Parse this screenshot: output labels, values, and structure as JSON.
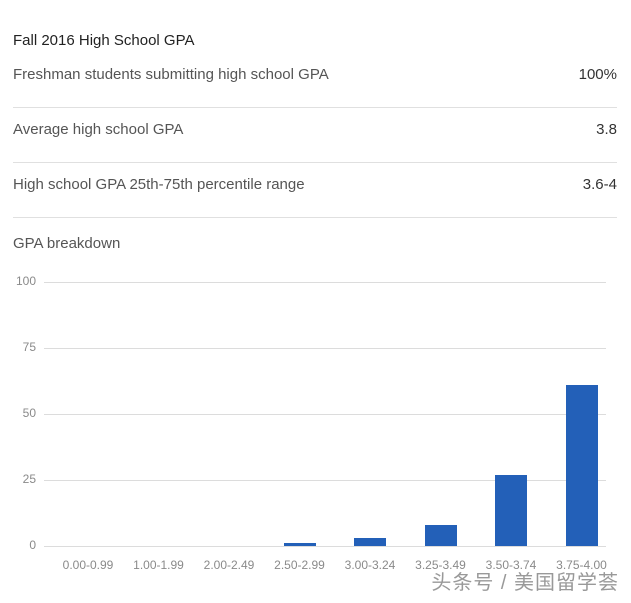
{
  "header": {
    "title": "Fall 2016 High School GPA"
  },
  "stats": [
    {
      "label": "Freshman students submitting high school GPA",
      "value": "100%"
    },
    {
      "label": "Average high school GPA",
      "value": "3.8"
    },
    {
      "label": "High school GPA 25th-75th percentile range",
      "value": "3.6-4"
    }
  ],
  "breakdown_label": "GPA breakdown",
  "watermark": "头条号 / 美国留学荟",
  "colors": {
    "bar": "#2360b8",
    "grid": "#dcdcdc"
  },
  "chart_data": {
    "type": "bar",
    "title": "GPA breakdown",
    "xlabel": "",
    "ylabel": "",
    "categories": [
      "0.00-0.99",
      "1.00-1.99",
      "2.00-2.49",
      "2.50-2.99",
      "3.00-3.24",
      "3.25-3.49",
      "3.50-3.74",
      "3.75-4.00"
    ],
    "values": [
      0,
      0,
      0,
      1,
      3,
      8,
      27,
      61
    ],
    "ylim": [
      0,
      100
    ],
    "yticks": [
      "100",
      "75",
      "50",
      "25",
      "0"
    ],
    "grid": true,
    "legend": null
  }
}
